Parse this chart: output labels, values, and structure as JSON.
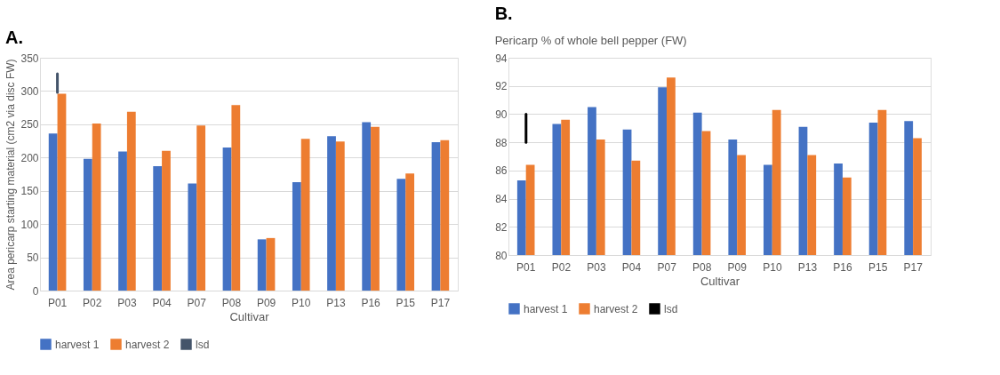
{
  "chart_data": [
    {
      "type": "bar",
      "title": "A.",
      "xlabel": "Cultivar",
      "ylabel": "Area pericarp starting material (cm2 via disc FW)",
      "categories": [
        "P01",
        "P02",
        "P03",
        "P04",
        "P07",
        "P08",
        "P09",
        "P10",
        "P13",
        "P16",
        "P15",
        "P17"
      ],
      "ylim": [
        0,
        350
      ],
      "yticks": [
        0,
        50,
        100,
        150,
        200,
        250,
        300,
        350
      ],
      "grid": "y",
      "legend": "bottom",
      "series": [
        {
          "name": "harvest 1",
          "color": "#4472c4",
          "values": [
            236,
            198,
            209,
            187,
            161,
            215,
            77,
            163,
            232,
            253,
            168,
            223
          ]
        },
        {
          "name": "harvest 2",
          "color": "#ed7d31",
          "values": [
            296,
            251,
            269,
            210,
            248,
            279,
            79,
            228,
            224,
            246,
            176,
            226
          ]
        },
        {
          "name": "lsd",
          "color": "#44546a",
          "type": "bar",
          "base": [
            298,
            null,
            null,
            null,
            null,
            null,
            null,
            null,
            null,
            null,
            null,
            null
          ],
          "values": [
            28,
            null,
            null,
            null,
            null,
            null,
            null,
            null,
            null,
            null,
            null,
            null
          ]
        }
      ]
    },
    {
      "type": "bar",
      "title": "B.",
      "subtitle": "Pericarp % of whole bell pepper (FW)",
      "xlabel": "Cultivar",
      "categories": [
        "P01",
        "P02",
        "P03",
        "P04",
        "P07",
        "P08",
        "P09",
        "P10",
        "P13",
        "P16",
        "P15",
        "P17"
      ],
      "ylim": [
        80,
        94
      ],
      "yticks": [
        80,
        82,
        84,
        86,
        88,
        90,
        92,
        94
      ],
      "grid": "y",
      "legend": "bottom",
      "series": [
        {
          "name": "harvest 1",
          "color": "#4472c4",
          "values": [
            85.3,
            89.3,
            90.5,
            88.9,
            91.9,
            90.1,
            88.2,
            86.4,
            89.1,
            86.5,
            89.4,
            89.5
          ]
        },
        {
          "name": "harvest 2",
          "color": "#ed7d31",
          "values": [
            86.4,
            89.6,
            88.2,
            86.7,
            92.6,
            88.8,
            87.1,
            90.3,
            87.1,
            85.5,
            90.3,
            88.3
          ]
        },
        {
          "name": "lsd",
          "color": "#000000",
          "type": "bar",
          "base": [
            88,
            null,
            null,
            null,
            null,
            null,
            null,
            null,
            null,
            null,
            null,
            null
          ],
          "values": [
            2,
            null,
            null,
            null,
            null,
            null,
            null,
            null,
            null,
            null,
            null,
            null
          ]
        }
      ]
    }
  ]
}
